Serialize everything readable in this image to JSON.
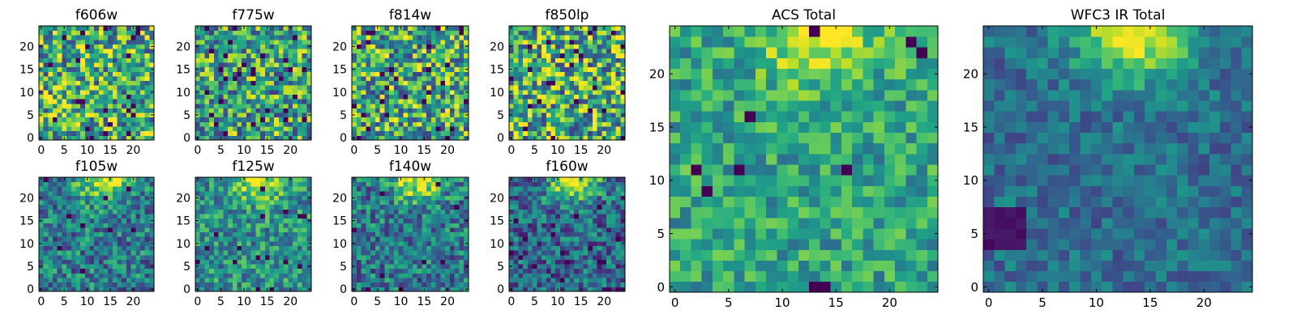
{
  "chart_data": [
    {
      "type": "heatmap",
      "title": "f606w",
      "colormap": "viridis",
      "grid_size": [
        25,
        25
      ],
      "xlim": [
        0,
        25
      ],
      "ylim": [
        0,
        25
      ],
      "xticks": [
        0,
        5,
        10,
        15,
        20
      ],
      "yticks": [
        0,
        5,
        10,
        15,
        20
      ],
      "xlabel": "",
      "ylabel": "",
      "pattern": "noise",
      "noise_level": 0.42,
      "mean_level": 0.62,
      "seed": 11,
      "dark_pixel_fraction": 0.04
    },
    {
      "type": "heatmap",
      "title": "f775w",
      "colormap": "viridis",
      "grid_size": [
        25,
        25
      ],
      "xlim": [
        0,
        25
      ],
      "ylim": [
        0,
        25
      ],
      "xticks": [
        0,
        5,
        10,
        15,
        20
      ],
      "yticks": [
        0,
        5,
        10,
        15,
        20
      ],
      "xlabel": "",
      "ylabel": "",
      "pattern": "noise",
      "noise_level": 0.4,
      "mean_level": 0.58,
      "seed": 23,
      "dark_pixel_fraction": 0.04
    },
    {
      "type": "heatmap",
      "title": "f814w",
      "colormap": "viridis",
      "grid_size": [
        25,
        25
      ],
      "xlim": [
        0,
        25
      ],
      "ylim": [
        0,
        25
      ],
      "xticks": [
        0,
        5,
        10,
        15,
        20
      ],
      "yticks": [
        0,
        5,
        10,
        15,
        20
      ],
      "xlabel": "",
      "ylabel": "",
      "pattern": "noise",
      "noise_level": 0.42,
      "mean_level": 0.6,
      "seed": 37,
      "dark_pixel_fraction": 0.04
    },
    {
      "type": "heatmap",
      "title": "f850lp",
      "colormap": "viridis",
      "grid_size": [
        25,
        25
      ],
      "xlim": [
        0,
        25
      ],
      "ylim": [
        0,
        25
      ],
      "xticks": [
        0,
        5,
        10,
        15,
        20
      ],
      "yticks": [
        0,
        5,
        10,
        15,
        20
      ],
      "xlabel": "",
      "ylabel": "",
      "pattern": "noise",
      "noise_level": 0.44,
      "mean_level": 0.62,
      "seed": 41,
      "dark_pixel_fraction": 0.04
    },
    {
      "type": "heatmap",
      "title": "f105w",
      "colormap": "viridis",
      "grid_size": [
        25,
        25
      ],
      "xlim": [
        0,
        25
      ],
      "ylim": [
        0,
        25
      ],
      "xticks": [
        0,
        5,
        10,
        15,
        20
      ],
      "yticks": [
        0,
        5,
        10,
        15,
        20
      ],
      "xlabel": "",
      "ylabel": "",
      "pattern": "source_top",
      "noise_level": 0.28,
      "mean_level": 0.42,
      "seed": 53,
      "source_center": [
        14,
        24.5
      ],
      "source_strength": 0.55,
      "dark_pixel_fraction": 0.02
    },
    {
      "type": "heatmap",
      "title": "f125w",
      "colormap": "viridis",
      "grid_size": [
        25,
        25
      ],
      "xlim": [
        0,
        25
      ],
      "ylim": [
        0,
        25
      ],
      "xticks": [
        0,
        5,
        10,
        15,
        20
      ],
      "yticks": [
        0,
        5,
        10,
        15,
        20
      ],
      "xlabel": "",
      "ylabel": "",
      "pattern": "source_top",
      "noise_level": 0.26,
      "mean_level": 0.5,
      "seed": 67,
      "source_center": [
        14,
        24.5
      ],
      "source_strength": 0.5,
      "dark_pixel_fraction": 0.02
    },
    {
      "type": "heatmap",
      "title": "f140w",
      "colormap": "viridis",
      "grid_size": [
        25,
        25
      ],
      "xlim": [
        0,
        25
      ],
      "ylim": [
        0,
        25
      ],
      "xticks": [
        0,
        5,
        10,
        15,
        20
      ],
      "yticks": [
        0,
        5,
        10,
        15,
        20
      ],
      "xlabel": "",
      "ylabel": "",
      "pattern": "source_top",
      "noise_level": 0.28,
      "mean_level": 0.4,
      "seed": 79,
      "source_center": [
        14,
        24.5
      ],
      "source_strength": 0.58,
      "dark_pixel_fraction": 0.02
    },
    {
      "type": "heatmap",
      "title": "f160w",
      "colormap": "viridis",
      "grid_size": [
        25,
        25
      ],
      "xlim": [
        0,
        25
      ],
      "ylim": [
        0,
        25
      ],
      "xticks": [
        0,
        5,
        10,
        15,
        20
      ],
      "yticks": [
        0,
        5,
        10,
        15,
        20
      ],
      "xlabel": "",
      "ylabel": "",
      "pattern": "source_top",
      "noise_level": 0.28,
      "mean_level": 0.34,
      "seed": 83,
      "source_center": [
        14,
        24.5
      ],
      "source_strength": 0.65,
      "dark_pixel_fraction": 0.02
    },
    {
      "type": "heatmap",
      "title": "ACS Total",
      "colormap": "viridis",
      "grid_size": [
        25,
        25
      ],
      "xlim": [
        0,
        25
      ],
      "ylim": [
        0,
        25
      ],
      "xticks": [
        0,
        5,
        10,
        15,
        20
      ],
      "yticks": [
        0,
        5,
        10,
        15,
        20
      ],
      "xlabel": "",
      "ylabel": "",
      "pattern": "source_top",
      "noise_level": 0.22,
      "mean_level": 0.58,
      "seed": 97,
      "source_center": [
        14,
        24.5
      ],
      "source_strength": 0.4,
      "dark_pixel_fraction": 0.025
    },
    {
      "type": "heatmap",
      "title": "WFC3 IR Total",
      "colormap": "viridis",
      "grid_size": [
        25,
        25
      ],
      "xlim": [
        0,
        25
      ],
      "ylim": [
        0,
        25
      ],
      "xticks": [
        0,
        5,
        10,
        15,
        20
      ],
      "yticks": [
        0,
        5,
        10,
        15,
        20
      ],
      "xlabel": "",
      "ylabel": "",
      "pattern": "source_top",
      "noise_level": 0.16,
      "mean_level": 0.36,
      "seed": 101,
      "source_center": [
        14,
        24.5
      ],
      "source_strength": 0.62,
      "dark_pixel_fraction": 0.0,
      "dark_region": {
        "x": [
          0,
          3
        ],
        "y": [
          4,
          7
        ]
      }
    }
  ]
}
